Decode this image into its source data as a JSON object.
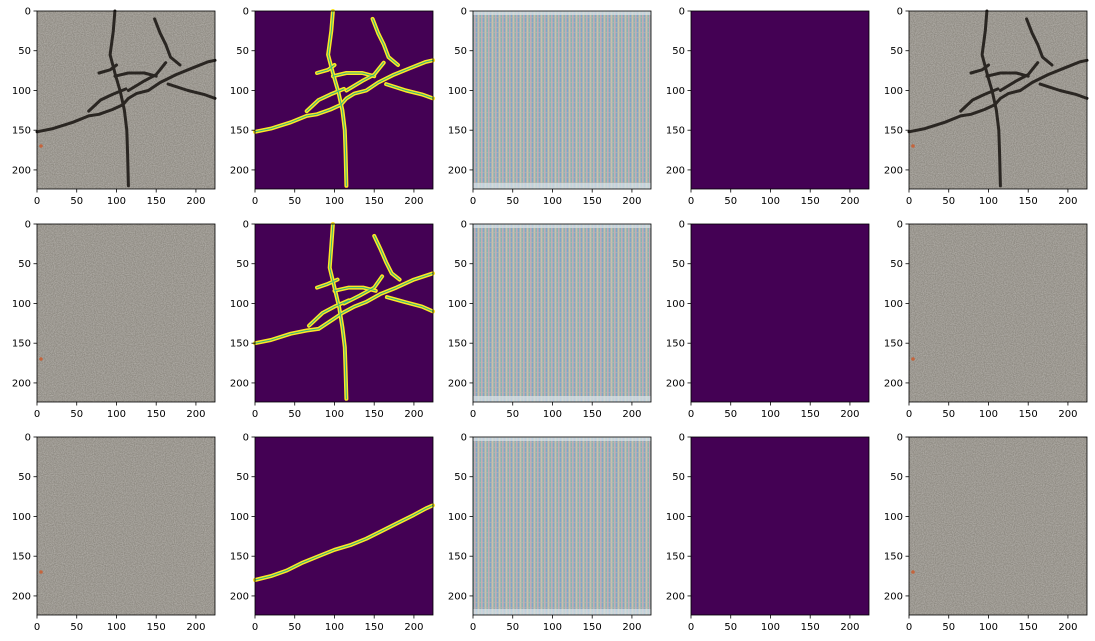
{
  "figure": {
    "rows": 3,
    "cols": 5,
    "column_kinds": [
      "photo",
      "crack-mask",
      "noise",
      "blank",
      "photo"
    ]
  },
  "colors": {
    "viridis_dark": "#440154",
    "viridis_yellow": "#fde725",
    "viridis_green": "#35b779",
    "asphalt": "#8e8a82",
    "crack": "#2a2622",
    "noise_base": "#aab2b4"
  },
  "chart_data": {
    "type": "heatmap",
    "panel_extent": {
      "x": [
        0,
        224
      ],
      "y": [
        0,
        224
      ],
      "y_inverted": true
    },
    "xticks": [
      0,
      50,
      100,
      150,
      200
    ],
    "yticks": [
      0,
      50,
      100,
      150,
      200
    ],
    "xtick_labels": [
      "0",
      "50",
      "100",
      "150",
      "200"
    ],
    "ytick_labels": [
      "0",
      "50",
      "100",
      "150",
      "200"
    ],
    "masks": [
      [
        [
          [
            0,
            152
          ],
          [
            20,
            148
          ],
          [
            45,
            140
          ],
          [
            65,
            132
          ],
          [
            78,
            130
          ],
          [
            95,
            124
          ],
          [
            108,
            118
          ],
          [
            115,
            110
          ],
          [
            125,
            104
          ],
          [
            140,
            100
          ],
          [
            155,
            90
          ],
          [
            175,
            80
          ],
          [
            195,
            72
          ],
          [
            215,
            64
          ],
          [
            224,
            62
          ]
        ],
        [
          [
            98,
            0
          ],
          [
            96,
            25
          ],
          [
            92,
            55
          ],
          [
            98,
            78
          ],
          [
            105,
            102
          ],
          [
            110,
            125
          ],
          [
            113,
            150
          ],
          [
            114,
            180
          ],
          [
            115,
            220
          ]
        ],
        [
          [
            65,
            126
          ],
          [
            80,
            112
          ],
          [
            95,
            105
          ],
          [
            112,
            98
          ]
        ],
        [
          [
            78,
            78
          ],
          [
            92,
            74
          ],
          [
            100,
            68
          ]
        ],
        [
          [
            115,
            100
          ],
          [
            135,
            88
          ],
          [
            150,
            80
          ],
          [
            162,
            65
          ]
        ],
        [
          [
            148,
            10
          ],
          [
            155,
            28
          ],
          [
            162,
            42
          ],
          [
            168,
            58
          ],
          [
            180,
            68
          ]
        ],
        [
          [
            165,
            92
          ],
          [
            190,
            100
          ],
          [
            210,
            105
          ],
          [
            224,
            110
          ]
        ],
        [
          [
            98,
            82
          ],
          [
            115,
            78
          ],
          [
            135,
            78
          ],
          [
            150,
            82
          ]
        ]
      ],
      [
        [
          [
            0,
            150
          ],
          [
            20,
            146
          ],
          [
            45,
            138
          ],
          [
            65,
            134
          ],
          [
            80,
            132
          ],
          [
            98,
            120
          ],
          [
            110,
            112
          ],
          [
            125,
            104
          ],
          [
            140,
            98
          ],
          [
            158,
            88
          ],
          [
            178,
            80
          ],
          [
            200,
            70
          ],
          [
            224,
            62
          ]
        ],
        [
          [
            98,
            0
          ],
          [
            96,
            28
          ],
          [
            94,
            55
          ],
          [
            100,
            80
          ],
          [
            106,
            105
          ],
          [
            110,
            130
          ],
          [
            113,
            155
          ],
          [
            114,
            185
          ],
          [
            115,
            220
          ]
        ],
        [
          [
            68,
            128
          ],
          [
            85,
            112
          ],
          [
            100,
            104
          ],
          [
            118,
            96
          ]
        ],
        [
          [
            78,
            80
          ],
          [
            90,
            76
          ],
          [
            104,
            70
          ]
        ],
        [
          [
            112,
            100
          ],
          [
            132,
            90
          ],
          [
            150,
            80
          ],
          [
            160,
            66
          ]
        ],
        [
          [
            150,
            15
          ],
          [
            158,
            32
          ],
          [
            165,
            48
          ],
          [
            172,
            62
          ],
          [
            182,
            70
          ]
        ],
        [
          [
            166,
            92
          ],
          [
            188,
            98
          ],
          [
            210,
            104
          ],
          [
            224,
            110
          ]
        ],
        [
          [
            100,
            84
          ],
          [
            118,
            80
          ],
          [
            136,
            80
          ],
          [
            152,
            84
          ]
        ]
      ],
      [
        [
          [
            0,
            180
          ],
          [
            20,
            175
          ],
          [
            40,
            168
          ],
          [
            60,
            158
          ],
          [
            80,
            150
          ],
          [
            100,
            142
          ],
          [
            120,
            136
          ],
          [
            140,
            128
          ],
          [
            160,
            118
          ],
          [
            180,
            108
          ],
          [
            200,
            98
          ],
          [
            215,
            90
          ],
          [
            224,
            86
          ]
        ]
      ]
    ]
  }
}
